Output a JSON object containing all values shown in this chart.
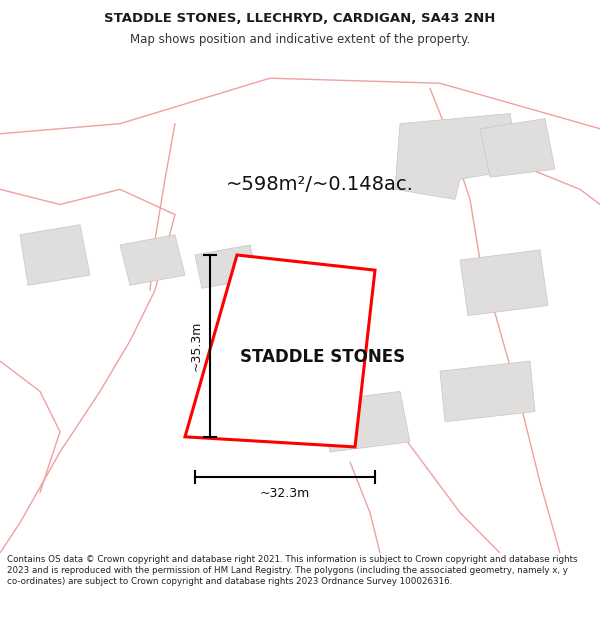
{
  "title_line1": "STADDLE STONES, LLECHRYD, CARDIGAN, SA43 2NH",
  "title_line2": "Map shows position and indicative extent of the property.",
  "property_name": "STADDLE STONES",
  "area_text": "~598m²/~0.148ac.",
  "dim_height": "~35.3m",
  "dim_width": "~32.3m",
  "footer_text": "Contains OS data © Crown copyright and database right 2021. This information is subject to Crown copyright and database rights 2023 and is reproduced with the permission of HM Land Registry. The polygons (including the associated geometry, namely x, y co-ordinates) are subject to Crown copyright and database rights 2023 Ordnance Survey 100026316.",
  "map_bg": "#f7f4f2",
  "plot_color": "#ff0000",
  "plot_lw": 2.2,
  "road_color": "#f0a0a0",
  "road_lw": 1.0,
  "building_color": "#e0dedd",
  "building_edge": "#c8c4c4",
  "title_fs": 9.5,
  "subtitle_fs": 8.5,
  "area_fs": 14,
  "propname_fs": 12,
  "dim_fs": 9,
  "footer_fs": 6.3
}
